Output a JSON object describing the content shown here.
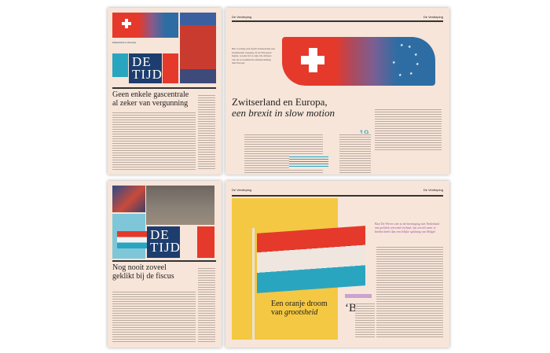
{
  "pages": [
    {
      "masthead": "DE TIJD",
      "headline": "Geen enkele gascentrale al zeker van vergunning",
      "teaser_top": "Zwitserland en Europa",
      "colors": {
        "paper": "#f7e5d9",
        "navy": "#1d3d6e",
        "red": "#e5392b",
        "teal": "#2aa5c0"
      }
    },
    {
      "section": "De Verdieping",
      "headline_line1": "Zwitserland en Europa,",
      "headline_line2": "een brexit in slow motion",
      "dropcap": "H",
      "figure": "19",
      "intro": "Het voorbije jaar heeft Zwitserland een beslissende toegang tot de Europese markt, zonder lid te zijn. De afbouw van de economische samenwerking met Europa."
    },
    {
      "masthead": "DE TIJD",
      "headline": "Nog nooit zoveel geklikt bij de fiscus"
    },
    {
      "section": "De Verdieping",
      "headline_line1": "Een oranje droom",
      "headline_line2_prefix": "van ",
      "headline_line2_italic": "grootsheid",
      "dropcap": "‘B",
      "pullquote": "Bart De Wever ziet in de hereniging met Nederland een politiek wervend verhaal, dat zoveel meer te bieden heeft dan een lelijke splitsing van België.",
      "colors": {
        "yellow": "#f4c842",
        "pullquote": "#9c5ba0"
      }
    }
  ]
}
